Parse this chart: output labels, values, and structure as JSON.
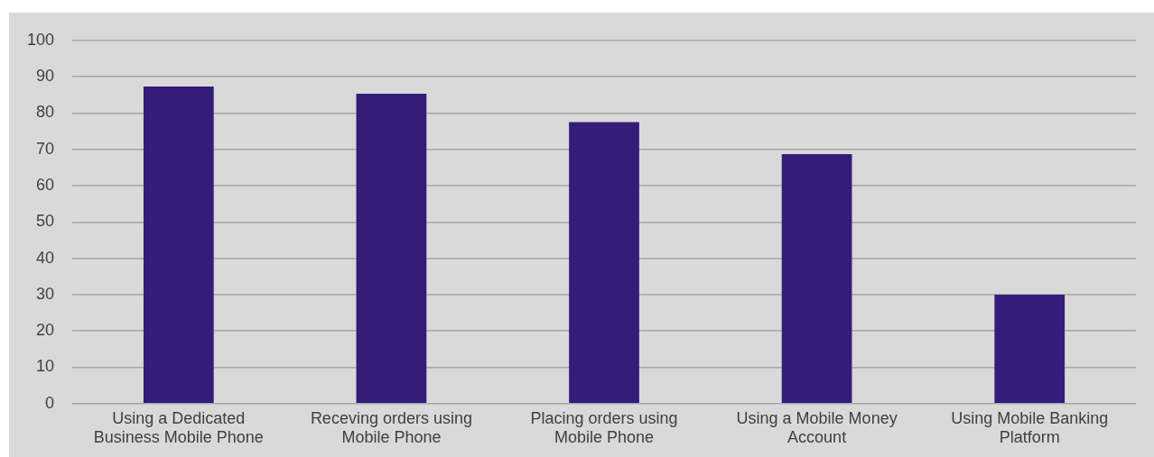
{
  "chart_data": {
    "type": "bar",
    "categories": [
      "Using a Dedicated Business Mobile Phone",
      "Receving orders using Mobile Phone",
      "Placing orders using Mobile Phone",
      "Using a Mobile Money Account",
      "Using Mobile Banking Platform"
    ],
    "values": [
      87.3,
      85.3,
      77.5,
      68.7,
      30
    ],
    "color": "#351c7a",
    "ylim": [
      0,
      100
    ],
    "yticks": [
      0,
      10,
      20,
      30,
      40,
      50,
      60,
      70,
      80,
      90,
      100
    ],
    "grid": "y",
    "legend": false
  }
}
